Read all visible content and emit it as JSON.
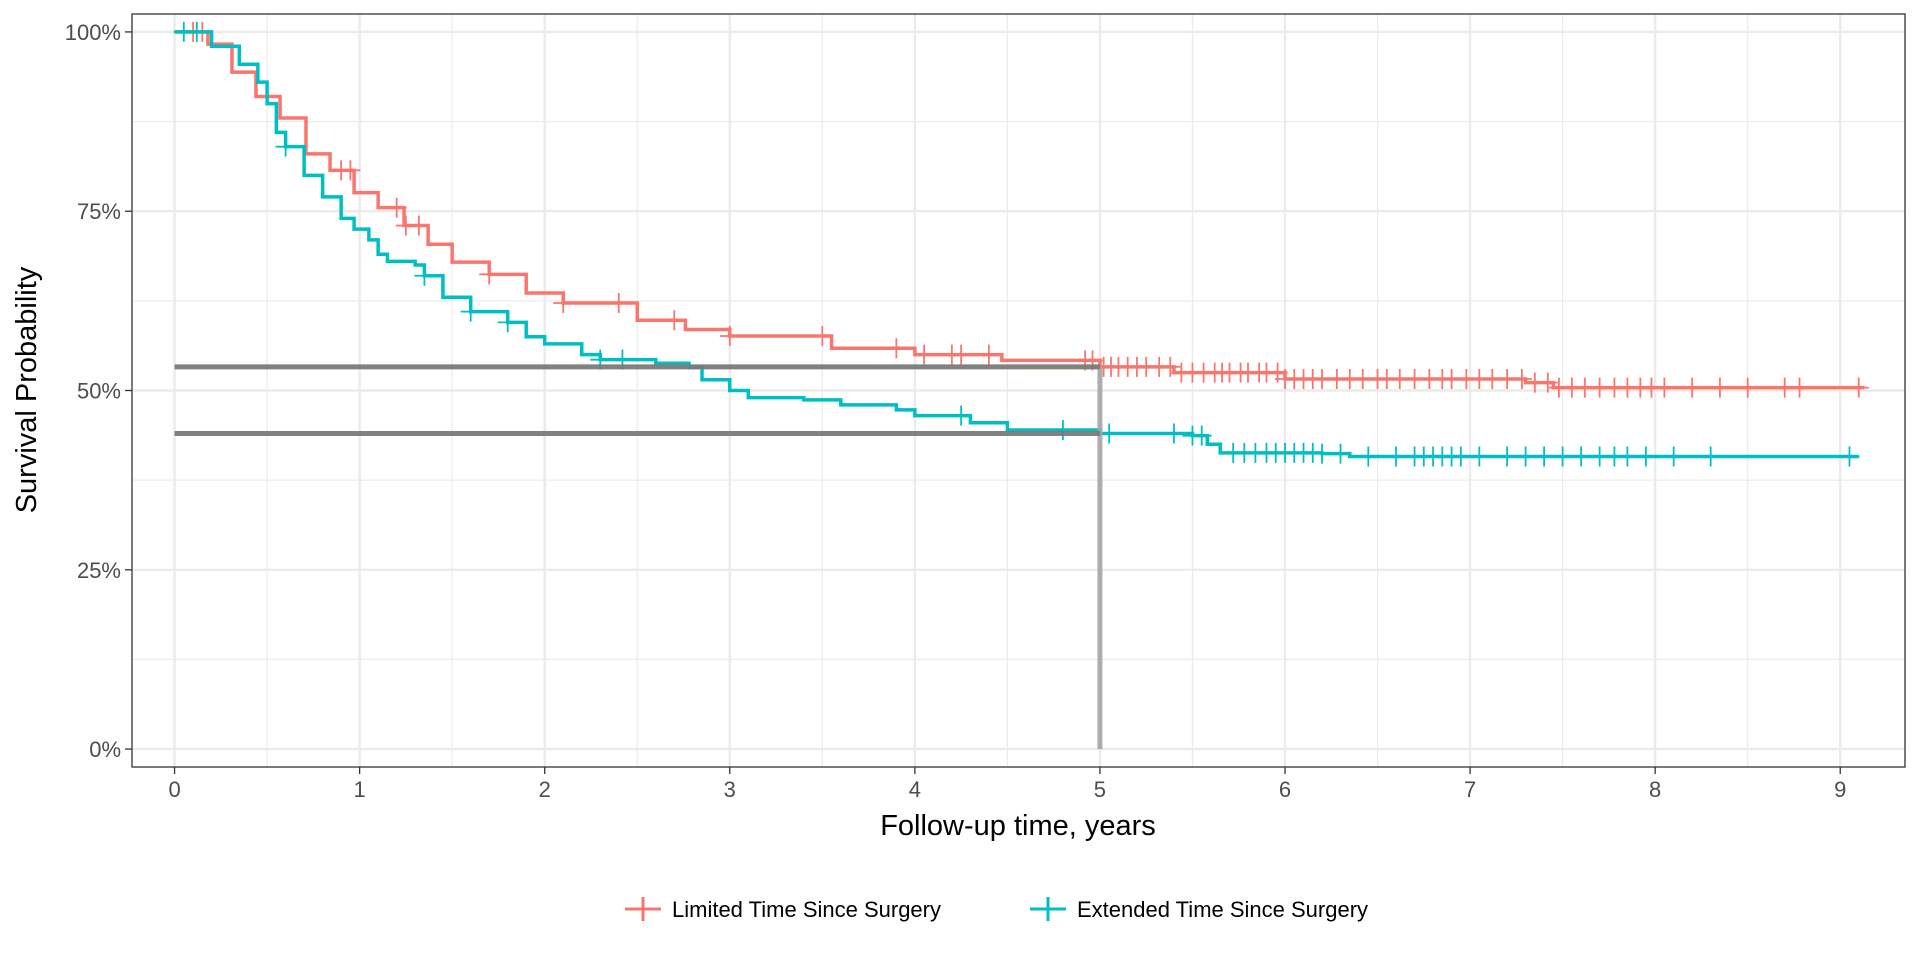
{
  "chart_data": {
    "type": "line",
    "subtype": "kaplan-meier step",
    "xlabel": "Follow-up time, years",
    "ylabel": "Survival Probability",
    "xlim": [
      -0.23,
      9.35
    ],
    "ylim": [
      -2.5,
      102.5
    ],
    "x_ticks": [
      0,
      1,
      2,
      3,
      4,
      5,
      6,
      7,
      8,
      9
    ],
    "x_tick_labels": [
      "0",
      "1",
      "2",
      "3",
      "4",
      "5",
      "6",
      "7",
      "8",
      "9"
    ],
    "y_ticks": [
      0,
      25,
      50,
      75,
      100
    ],
    "y_tick_labels": [
      "0%",
      "25%",
      "50%",
      "75%",
      "100%"
    ],
    "grid": true,
    "legend_position": "bottom",
    "reference_lines": {
      "vertical_x": 5,
      "horizontal_y": [
        53.3,
        44.0
      ],
      "color": "#a6a6a6"
    },
    "series": [
      {
        "name": "Limited Time Since Surgery",
        "color": "#F8766D",
        "x": [
          0,
          0.18,
          0.31,
          0.44,
          0.57,
          0.71,
          0.84,
          0.97,
          1.1,
          1.24,
          1.37,
          1.5,
          1.7,
          1.9,
          2.1,
          2.5,
          2.76,
          3.0,
          3.55,
          4.0,
          4.47,
          5.0,
          5.4,
          6.0,
          7.3,
          7.45,
          9.13
        ],
        "y": [
          100,
          98.3,
          94.4,
          91,
          88,
          83,
          80.7,
          77.6,
          75.5,
          73,
          70.4,
          67.9,
          66.2,
          63.6,
          62.2,
          59.8,
          58.5,
          57.6,
          55.9,
          55,
          54.2,
          53.3,
          52.5,
          51.6,
          51.1,
          50.4,
          50.4
        ],
        "censor_times": [
          0.1,
          0.15,
          0.9,
          0.95,
          1.2,
          1.25,
          1.32,
          1.7,
          2.1,
          2.4,
          2.7,
          3.0,
          3.5,
          3.9,
          4.05,
          4.2,
          4.25,
          4.4,
          4.92,
          4.96,
          5.02,
          5.06,
          5.1,
          5.15,
          5.2,
          5.25,
          5.32,
          5.38,
          5.44,
          5.5,
          5.56,
          5.62,
          5.66,
          5.7,
          5.76,
          5.8,
          5.86,
          5.9,
          5.96,
          6.0,
          6.05,
          6.1,
          6.15,
          6.2,
          6.28,
          6.35,
          6.42,
          6.5,
          6.55,
          6.62,
          6.7,
          6.78,
          6.85,
          6.9,
          6.98,
          7.05,
          7.12,
          7.2,
          7.28,
          7.35,
          7.42,
          7.48,
          7.55,
          7.62,
          7.7,
          7.78,
          7.85,
          7.92,
          7.98,
          8.05,
          8.2,
          8.35,
          8.5,
          8.7,
          8.78,
          9.1
        ]
      },
      {
        "name": "Extended Time Since Surgery",
        "color": "#00BFC4",
        "x": [
          0,
          0.2,
          0.35,
          0.45,
          0.5,
          0.55,
          0.6,
          0.7,
          0.8,
          0.9,
          0.97,
          1.05,
          1.1,
          1.15,
          1.3,
          1.35,
          1.45,
          1.6,
          1.8,
          1.9,
          2.0,
          2.2,
          2.3,
          2.6,
          2.78,
          2.85,
          3.0,
          3.1,
          3.4,
          3.6,
          3.9,
          4.0,
          4.3,
          4.5,
          5.0,
          5.5,
          5.58,
          5.65,
          6.2,
          6.35,
          9.1
        ],
        "y": [
          100,
          98,
          95.5,
          93,
          90,
          86,
          84,
          80,
          77,
          74,
          72.5,
          71,
          69,
          68,
          67.5,
          66,
          63,
          61,
          59.5,
          57.5,
          56.5,
          55,
          54.3,
          53.8,
          53.2,
          51.5,
          50,
          49,
          48.7,
          48,
          47.3,
          46.5,
          45.5,
          44.5,
          44.0,
          43.7,
          42.5,
          41.3,
          41.2,
          40.8,
          40.8
        ],
        "censor_times": [
          0.05,
          0.12,
          0.6,
          1.35,
          1.6,
          1.8,
          2.3,
          2.42,
          4.25,
          4.8,
          5.05,
          5.4,
          5.5,
          5.55,
          5.72,
          5.78,
          5.84,
          5.9,
          5.95,
          6.0,
          6.05,
          6.1,
          6.15,
          6.2,
          6.3,
          6.45,
          6.6,
          6.7,
          6.75,
          6.8,
          6.85,
          6.9,
          6.95,
          7.05,
          7.2,
          7.3,
          7.4,
          7.5,
          7.6,
          7.7,
          7.78,
          7.85,
          7.95,
          8.1,
          8.3,
          9.05
        ]
      }
    ]
  }
}
